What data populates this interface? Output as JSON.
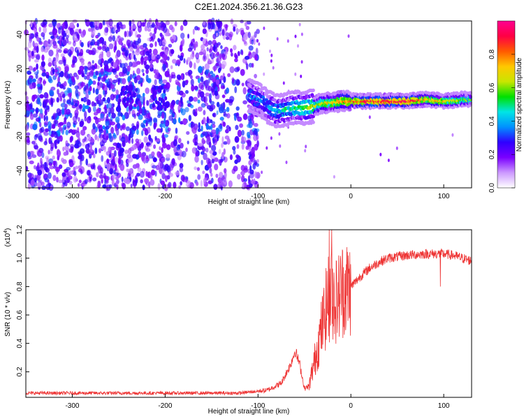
{
  "title": "C2E1.2024.356.21.36.G23",
  "chart_data": [
    {
      "type": "heatmap",
      "xlabel": "Height of straight line (km)",
      "ylabel": "Frequency (Hz)",
      "xlim": [
        -350,
        130
      ],
      "ylim": [
        -50,
        48
      ],
      "x_ticks": [
        -300,
        -200,
        -100,
        0,
        100
      ],
      "y_ticks": [
        -40,
        -20,
        0,
        20,
        40
      ],
      "colorbar": {
        "label": "Normalized spectral amplitude",
        "range": [
          0,
          1
        ],
        "ticks": [
          "0.0",
          "0.2",
          "0.4",
          "0.6",
          "0.8"
        ],
        "colors": [
          "#ffffff",
          "#cc99ff",
          "#7a00ff",
          "#2f00ff",
          "#0090ff",
          "#00e5e5",
          "#00e000",
          "#c8e600",
          "#ffc800",
          "#ff5a00",
          "#ff0044",
          "#ff0090"
        ]
      },
      "ridge": {
        "x": [
          -110,
          -100,
          -90,
          -80,
          -70,
          -60,
          -50,
          -40,
          -30,
          -20,
          -10,
          0,
          20,
          40,
          60,
          80,
          100,
          120,
          130
        ],
        "y": [
          4,
          2,
          -2,
          -5,
          -4,
          -3,
          -3,
          -2,
          0,
          0,
          1,
          1,
          1,
          1,
          1,
          2,
          1,
          2,
          2
        ],
        "strength": [
          0.3,
          0.35,
          0.35,
          0.4,
          0.45,
          0.5,
          0.55,
          0.6,
          0.65,
          0.7,
          0.75,
          0.8,
          0.9,
          0.9,
          0.9,
          0.75,
          0.7,
          0.6,
          0.55
        ]
      },
      "noise_region": [
        -350,
        -100
      ]
    },
    {
      "type": "line",
      "xlabel": "Height of straight line (km)",
      "ylabel": "SNR (10 * v/v)",
      "scale_label": "(x10",
      "scale_exp": "4",
      "scale_close": ")",
      "xlim": [
        -350,
        130
      ],
      "ylim": [
        0.02,
        1.2
      ],
      "x_ticks": [
        -300,
        -200,
        -100,
        0,
        100
      ],
      "y_ticks": [
        "0.2",
        "0.4",
        "0.6",
        "0.8",
        "1.0",
        "1.2"
      ],
      "series_color": "#ee3333",
      "envelope": {
        "x": [
          -350,
          -120,
          -90,
          -75,
          -65,
          -60,
          -55,
          -50,
          -45,
          -40,
          -35,
          -30,
          -25,
          -20,
          -15,
          -10,
          0,
          10,
          20,
          30,
          40,
          60,
          80,
          100,
          110,
          120,
          130
        ],
        "y": [
          0.05,
          0.05,
          0.07,
          0.12,
          0.25,
          0.35,
          0.25,
          0.08,
          0.1,
          0.25,
          0.4,
          0.55,
          0.7,
          0.75,
          0.7,
          0.78,
          0.8,
          0.87,
          0.93,
          0.97,
          1.0,
          1.02,
          1.03,
          1.03,
          1.02,
          1.0,
          0.98
        ]
      }
    }
  ]
}
